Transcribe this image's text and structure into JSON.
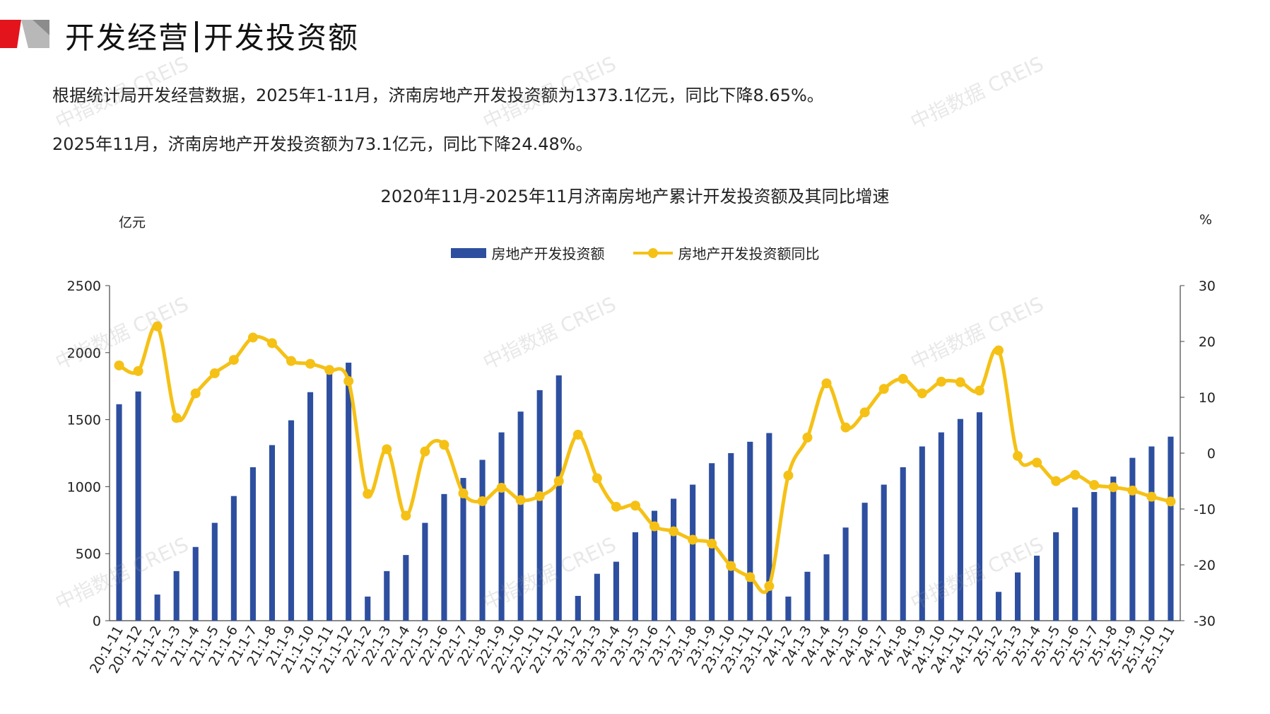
{
  "header": {
    "title_part1": "开发经营",
    "title_part2": "开发投资额"
  },
  "paragraphs": {
    "p1": "根据统计局开发经营数据，2025年1-11月，济南房地产开发投资额为1373.1亿元，同比下降8.65%。",
    "p2": "2025年11月，济南房地产开发投资额为73.1亿元，同比下降24.48%。"
  },
  "watermark": "中指数据 CREIS",
  "colors": {
    "bar": "#2e4f9f",
    "line": "#f5c116",
    "brand_red": "#e3141b"
  },
  "chart_data": {
    "type": "bar",
    "title": "2020年11月-2025年11月济南房地产累计开发投资额及其同比增速",
    "ylabel": "亿元",
    "y2label": "%",
    "ylim": [
      0,
      2500
    ],
    "y2lim": [
      -30,
      30
    ],
    "yticks": [
      0,
      500,
      1000,
      1500,
      2000,
      2500
    ],
    "y2ticks": [
      -30,
      -20,
      -10,
      0,
      10,
      20,
      30
    ],
    "legend_position": "top-center",
    "categories": [
      "20:1-11",
      "20:1-12",
      "21:1-2",
      "21:1-3",
      "21:1-4",
      "21:1-5",
      "21:1-6",
      "21:1-7",
      "21:1-8",
      "21:1-9",
      "21:1-10",
      "21:1-11",
      "21:1-12",
      "22:1-2",
      "22:1-3",
      "22:1-4",
      "22:1-5",
      "22:1-6",
      "22:1-7",
      "22:1-8",
      "22:1-9",
      "22:1-10",
      "22:1-11",
      "22:1-12",
      "23:1-2",
      "23:1-3",
      "23:1-4",
      "23:1-5",
      "23:1-6",
      "23:1-7",
      "23:1-8",
      "23:1-9",
      "23:1-10",
      "23:1-11",
      "23:1-12",
      "24:1-2",
      "24:1-3",
      "24:1-4",
      "24:1-5",
      "24:1-6",
      "24:1-7",
      "24:1-8",
      "24:1-9",
      "24:1-10",
      "24:1-11",
      "24:1-12",
      "25:1-2",
      "25:1-3",
      "25:1-4",
      "25:1-5",
      "25:1-6",
      "25:1-7",
      "25:1-8",
      "25:1-9",
      "25:1-10",
      "25:1-11"
    ],
    "series": [
      {
        "name": "房地产开发投资额",
        "type": "bar",
        "axis": "left",
        "values": [
          1615,
          1710,
          195,
          370,
          550,
          730,
          930,
          1145,
          1310,
          1495,
          1705,
          1855,
          1925,
          180,
          370,
          490,
          730,
          945,
          1065,
          1200,
          1405,
          1560,
          1720,
          1830,
          185,
          350,
          440,
          660,
          820,
          910,
          1015,
          1175,
          1250,
          1335,
          1400,
          180,
          365,
          495,
          695,
          880,
          1015,
          1145,
          1300,
          1405,
          1505,
          1555,
          215,
          360,
          485,
          660,
          845,
          960,
          1075,
          1215,
          1300,
          1373.1
        ]
      },
      {
        "name": "房地产开发投资额同比",
        "type": "line",
        "axis": "right",
        "values": [
          15.7,
          14.7,
          22.7,
          6.3,
          10.7,
          14.3,
          16.7,
          20.7,
          19.7,
          16.5,
          16.0,
          14.9,
          12.9,
          -7.3,
          0.7,
          -11.2,
          0.3,
          1.5,
          -7.2,
          -8.6,
          -6.2,
          -8.4,
          -7.7,
          -5.0,
          3.3,
          -4.5,
          -9.6,
          -9.4,
          -13.1,
          -14.0,
          -15.5,
          -16.2,
          -20.2,
          -22.2,
          -23.8,
          -4.0,
          2.8,
          12.5,
          4.6,
          7.3,
          11.5,
          13.3,
          10.7,
          12.8,
          12.7,
          11.2,
          18.4,
          -0.5,
          -1.7,
          -5.0,
          -3.9,
          -5.7,
          -6.1,
          -6.7,
          -7.8,
          -8.65
        ]
      }
    ]
  }
}
